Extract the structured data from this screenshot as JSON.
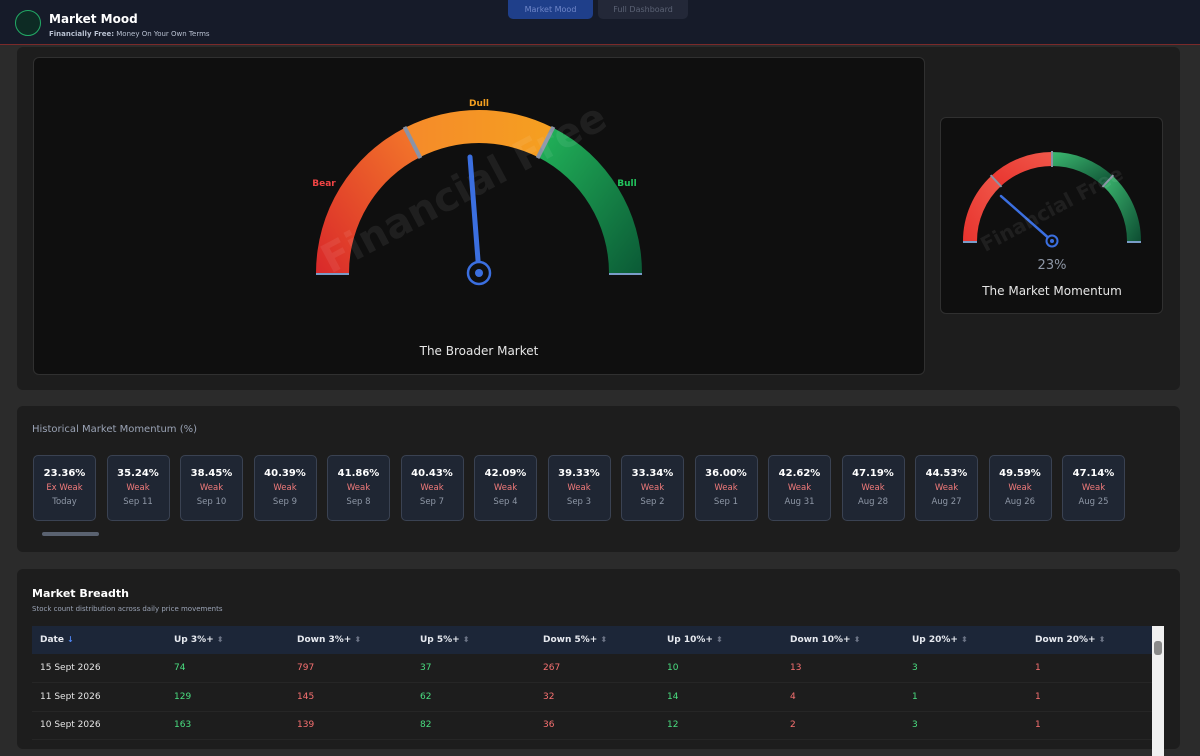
{
  "header": {
    "title": "Market Mood",
    "subtitle_bold": "Financially Free:",
    "subtitle": "Money On Your Own Terms",
    "tabs": [
      "Market Mood",
      "Full Dashboard"
    ]
  },
  "broader_market": {
    "labels": [
      "Bear",
      "Dull",
      "Bull"
    ],
    "watermark": "Financial Free",
    "title": "The Broader Market"
  },
  "momentum": {
    "value": 23,
    "label": "23%",
    "watermark": "Financial Free",
    "title": "The Market Momentum"
  },
  "history": {
    "title": "Historical Market Momentum (%)",
    "cards": [
      [
        "23.36%",
        "Ex Weak",
        "Today"
      ],
      [
        "35.24%",
        "Weak",
        "Sep 11"
      ],
      [
        "38.45%",
        "Weak",
        "Sep 10"
      ],
      [
        "40.39%",
        "Weak",
        "Sep 9"
      ],
      [
        "41.86%",
        "Weak",
        "Sep 8"
      ],
      [
        "40.43%",
        "Weak",
        "Sep 7"
      ],
      [
        "42.09%",
        "Weak",
        "Sep 4"
      ],
      [
        "39.33%",
        "Weak",
        "Sep 3"
      ],
      [
        "33.34%",
        "Weak",
        "Sep 2"
      ],
      [
        "36.00%",
        "Weak",
        "Sep 1"
      ],
      [
        "42.62%",
        "Weak",
        "Aug 31"
      ],
      [
        "47.19%",
        "Weak",
        "Aug 28"
      ],
      [
        "44.53%",
        "Weak",
        "Aug 27"
      ],
      [
        "49.59%",
        "Weak",
        "Aug 26"
      ],
      [
        "47.14%",
        "Weak",
        "Aug 25"
      ]
    ]
  },
  "breadth": {
    "title": "Market Breadth",
    "subtitle": "Stock count distribution across daily price movements",
    "columns": [
      "Date",
      "Up 3%+",
      "Down 3%+",
      "Up 5%+",
      "Down 5%+",
      "Up 10%+",
      "Down 10%+",
      "Up 20%+",
      "Down 20%+"
    ],
    "rows": [
      [
        "15 Sept 2026",
        74,
        797,
        37,
        267,
        10,
        13,
        3,
        1
      ],
      [
        "11 Sept 2026",
        129,
        145,
        62,
        32,
        14,
        4,
        1,
        1
      ],
      [
        "10 Sept 2026",
        163,
        139,
        82,
        36,
        12,
        2,
        3,
        1
      ]
    ]
  }
}
